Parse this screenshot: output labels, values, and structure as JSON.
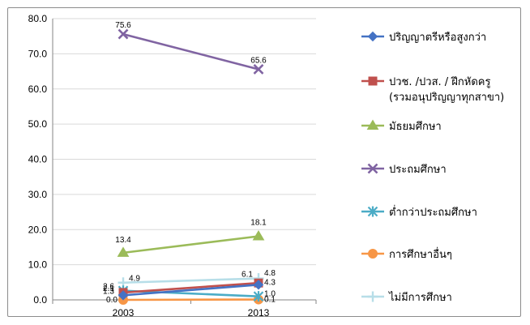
{
  "chart_data": {
    "type": "line",
    "categories": [
      "2003",
      "2013"
    ],
    "ylim": [
      0,
      80
    ],
    "yticks": [
      "0.0",
      "10.0",
      "20.0",
      "30.0",
      "40.0",
      "50.0",
      "60.0",
      "70.0",
      "80.0"
    ],
    "grid": "horizontal",
    "legend_position": "right",
    "series": [
      {
        "name": "ปริญญาตรีหรือสูงกว่า",
        "values": [
          1.3,
          4.3
        ],
        "labels": [
          "1.3",
          "4.3"
        ],
        "color": "#4472C4",
        "marker": "diamond"
      },
      {
        "name": "ปวช. /ปวส. / ฝึกหัดครู (รวมอนุปริญญาทุกสาขา)",
        "values": [
          2.1,
          4.8
        ],
        "labels": [
          "2.1",
          "4.8"
        ],
        "color": "#C0504D",
        "marker": "square"
      },
      {
        "name": "มัธยมศึกษา",
        "values": [
          13.4,
          18.1
        ],
        "labels": [
          "13.4",
          "18.1"
        ],
        "color": "#9BBB59",
        "marker": "triangle"
      },
      {
        "name": "ประถมศึกษา",
        "values": [
          75.6,
          65.6
        ],
        "labels": [
          "75.6",
          "65.6"
        ],
        "color": "#8064A2",
        "marker": "x"
      },
      {
        "name": "ต่ำกว่าประถมศึกษา",
        "values": [
          2.6,
          1.0
        ],
        "labels": [
          "2.6",
          "1.0"
        ],
        "color": "#4BACC6",
        "marker": "star"
      },
      {
        "name": "การศึกษาอื่นๆ",
        "values": [
          0.0,
          0.1
        ],
        "labels": [
          "0.0",
          "0.1"
        ],
        "color": "#F79646",
        "marker": "circle"
      },
      {
        "name": "ไม่มีการศึกษา",
        "values": [
          4.9,
          6.1
        ],
        "labels": [
          "4.9",
          "6.1"
        ],
        "color": "#B7DEE8",
        "marker": "plus"
      }
    ]
  }
}
